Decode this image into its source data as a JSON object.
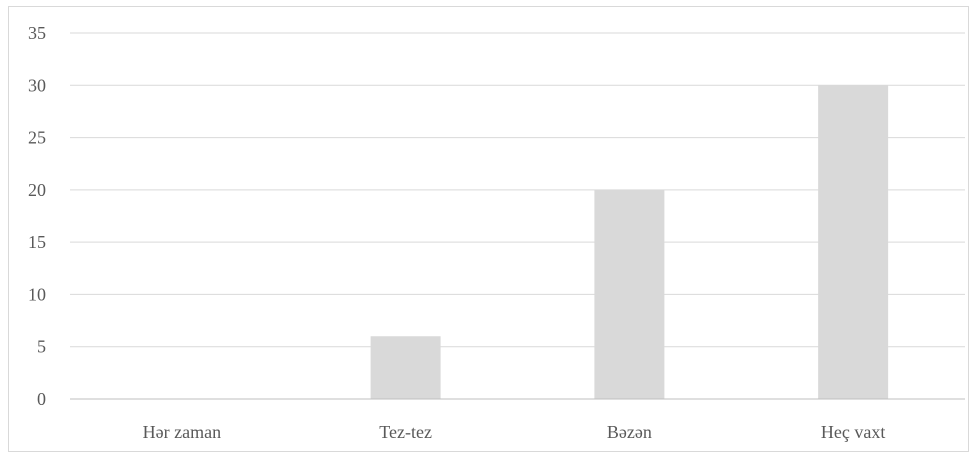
{
  "chart_data": {
    "type": "bar",
    "categories": [
      "Hər zaman",
      "Tez-tez",
      "Bəzən",
      "Heç vaxt"
    ],
    "values": [
      0,
      6,
      20,
      30
    ],
    "ylim": [
      0,
      35
    ],
    "yticks": [
      0,
      5,
      10,
      15,
      20,
      25,
      30,
      35
    ],
    "grid": true,
    "legend": "none",
    "bar_color": "#d9d9d9"
  }
}
